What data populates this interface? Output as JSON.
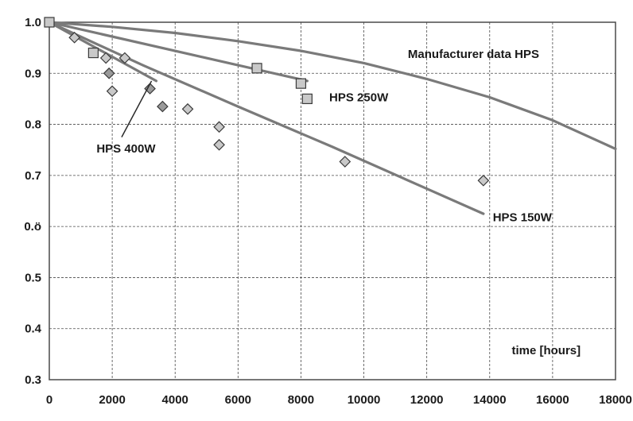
{
  "chart_data": {
    "type": "scatter",
    "title": "",
    "xlabel": "time [hours]",
    "ylabel": "",
    "xlim": [
      0,
      18000
    ],
    "ylim": [
      0.3,
      1.0
    ],
    "grid": true,
    "x_ticks": [
      0,
      2000,
      4000,
      6000,
      8000,
      10000,
      12000,
      14000,
      16000,
      18000
    ],
    "x_tick_labels": [
      "0",
      "2000",
      "4000",
      "6000",
      "8000",
      "10000",
      "12000",
      "14000",
      "16000",
      "18000"
    ],
    "y_ticks": [
      1.0,
      0.9,
      0.8,
      0.7,
      0.6,
      0.5,
      0.4,
      0.3
    ],
    "y_tick_labels": [
      "1.0",
      "0.9",
      "0.8",
      "0.7",
      "0.ö",
      "0.5",
      "0.4",
      "0.3"
    ],
    "colors": {
      "curve": "#7a7a7a",
      "marker_fill": "#c9c9c9",
      "marker_fill_dark": "#9a9a9a",
      "marker_stroke": "#3a3a3a",
      "grid": "#4a4a4a"
    },
    "series": [
      {
        "name": "Manufacturer data HPS",
        "kind": "line",
        "x": [
          0,
          2000,
          4000,
          6000,
          8000,
          10000,
          12000,
          14000,
          16000,
          18000
        ],
        "y": [
          1.0,
          0.991,
          0.979,
          0.963,
          0.944,
          0.92,
          0.889,
          0.853,
          0.808,
          0.752
        ]
      },
      {
        "name": "HPS 250W",
        "kind": "line",
        "x": [
          0,
          8200
        ],
        "y": [
          1.0,
          0.885
        ]
      },
      {
        "name": "HPS 250W",
        "kind": "points",
        "marker": "square",
        "x": [
          0,
          1400,
          6600,
          8000,
          8200
        ],
        "y": [
          1.0,
          0.94,
          0.91,
          0.88,
          0.85
        ]
      },
      {
        "name": "HPS 150W",
        "kind": "line",
        "x": [
          0,
          3000,
          6000,
          9000,
          12000,
          13800
        ],
        "y": [
          1.0,
          0.915,
          0.835,
          0.756,
          0.674,
          0.625
        ]
      },
      {
        "name": "HPS 150W",
        "kind": "points",
        "marker": "diamond",
        "x": [
          800,
          1800,
          2000,
          2400,
          4400,
          5400,
          5400,
          9400,
          13800
        ],
        "y": [
          0.97,
          0.93,
          0.865,
          0.93,
          0.83,
          0.795,
          0.76,
          0.727,
          0.69
        ]
      },
      {
        "name": "HPS 400W",
        "kind": "line",
        "x": [
          0,
          3400
        ],
        "y": [
          1.0,
          0.885
        ]
      },
      {
        "name": "HPS 400W",
        "kind": "points",
        "marker": "diamond-dark",
        "x": [
          1900,
          3200,
          3600
        ],
        "y": [
          0.9,
          0.87,
          0.835
        ]
      }
    ],
    "annotations": [
      {
        "text": "Manufacturer data HPS",
        "x": 11400,
        "y": 0.93,
        "anchor": "start"
      },
      {
        "text": "HPS 250W",
        "x": 8900,
        "y": 0.845,
        "anchor": "start"
      },
      {
        "text": "HPS 400W",
        "x": 1500,
        "y": 0.745,
        "anchor": "start"
      },
      {
        "text": "HPS 150W",
        "x": 14100,
        "y": 0.61,
        "anchor": "start"
      },
      {
        "text": "time [hours]",
        "x": 14700,
        "y": 0.35,
        "anchor": "start"
      }
    ]
  }
}
